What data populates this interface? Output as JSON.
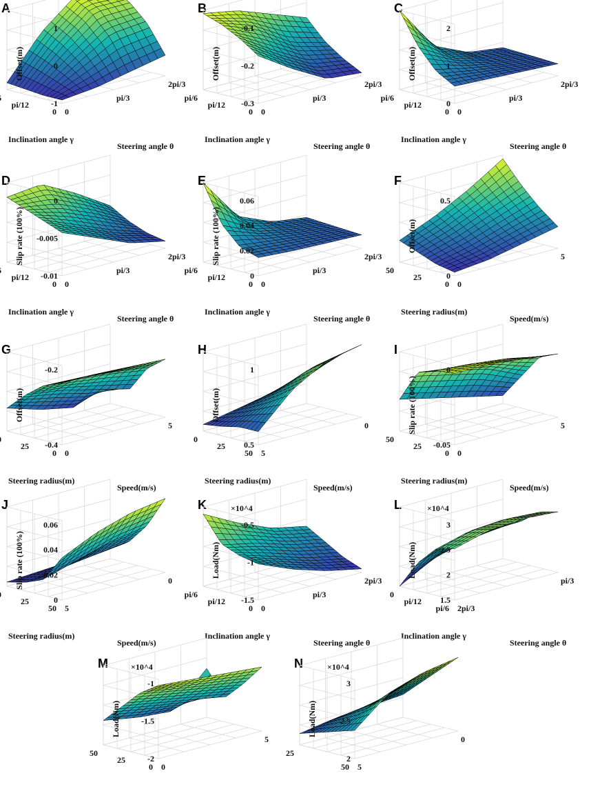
{
  "figure": {
    "colors": {
      "low": "#3e26a8",
      "mid": "#14b5b1",
      "high": "#f9fb15",
      "mesh": "#000000",
      "grid": "#d9d9d9"
    }
  },
  "chart_data": [
    {
      "label": "A",
      "type": "surface",
      "variant": "angle",
      "zlabel": "Offset(m)",
      "zticks": [
        "1",
        "0",
        "-1"
      ],
      "zlim": [
        -1,
        1.3
      ],
      "y_label": "Inclination angle γ",
      "y_ticks": [
        "pi/6",
        "pi/12",
        "0"
      ],
      "x_label": "Steering angle θ",
      "x_ticks": [
        "0",
        "pi/3",
        "2pi/3"
      ],
      "surface": [
        [
          -0.9,
          -0.8,
          -0.6,
          -0.4
        ],
        [
          -0.9,
          -0.3,
          0.3,
          0.4
        ],
        [
          -0.85,
          0.1,
          0.9,
          0.9
        ],
        [
          -0.8,
          0.4,
          1.2,
          1.1
        ]
      ]
    },
    {
      "label": "B",
      "type": "surface",
      "variant": "angle",
      "zlabel": "Offset(m)",
      "zticks": [
        "-0.1",
        "-0.2",
        "-0.3"
      ],
      "zlim": [
        -0.3,
        -0.05
      ],
      "y_label": "Inclination angle γ",
      "y_ticks": [
        "pi/6",
        "pi/12",
        "0"
      ],
      "x_label": "Steering angle θ",
      "x_ticks": [
        "0",
        "pi/3",
        "2pi/3"
      ],
      "surface": [
        [
          -0.15,
          -0.22,
          -0.28,
          -0.29
        ],
        [
          -0.11,
          -0.18,
          -0.24,
          -0.26
        ],
        [
          -0.08,
          -0.12,
          -0.19,
          -0.22
        ],
        [
          -0.06,
          -0.08,
          -0.12,
          -0.16
        ]
      ]
    },
    {
      "label": "C",
      "type": "surface",
      "variant": "angle",
      "zlabel": "Offset(m)",
      "zticks": [
        "2",
        "1",
        "0"
      ],
      "zlim": [
        0,
        2.3
      ],
      "y_label": "Inclination angle γ",
      "y_ticks": [
        "pi/6",
        "pi/12",
        "0"
      ],
      "x_label": "Steering angle θ",
      "x_ticks": [
        "0",
        "pi/3",
        "2pi/3"
      ],
      "surface": [
        [
          0.5,
          0.45,
          0.4,
          0.35
        ],
        [
          0.8,
          0.6,
          0.45,
          0.38
        ],
        [
          1.4,
          0.8,
          0.5,
          0.4
        ],
        [
          2.3,
          1.0,
          0.55,
          0.42
        ]
      ]
    },
    {
      "label": "D",
      "type": "surface",
      "variant": "angle",
      "zlabel": "Slip rate (100%)",
      "zticks": [
        "0",
        "-0.005",
        "-0.01"
      ],
      "zlim": [
        -0.011,
        0
      ],
      "y_label": "Inclination angle γ",
      "y_ticks": [
        "pi/6",
        "pi/12",
        "0"
      ],
      "x_label": "Steering angle θ",
      "x_ticks": [
        "0",
        "pi/3",
        "2pi/3"
      ],
      "surface": [
        [
          -0.005,
          -0.007,
          -0.009,
          -0.01
        ],
        [
          -0.004,
          -0.006,
          -0.008,
          -0.0095
        ],
        [
          -0.003,
          -0.004,
          -0.006,
          -0.0085
        ],
        [
          -0.002,
          -0.0015,
          -0.004,
          -0.007
        ]
      ]
    },
    {
      "label": "E",
      "type": "surface",
      "variant": "angle",
      "zlabel": "Slip rate (100%)",
      "zticks": [
        "0.06",
        "0.04",
        "0.02",
        "0"
      ],
      "zlim": [
        0,
        0.065
      ],
      "y_label": "Inclination angle γ",
      "y_ticks": [
        "pi/6",
        "pi/12",
        "0"
      ],
      "x_label": "Steering angle θ",
      "x_ticks": [
        "0",
        "pi/3",
        "2pi/3"
      ],
      "surface": [
        [
          0.015,
          0.013,
          0.012,
          0.011
        ],
        [
          0.02,
          0.017,
          0.014,
          0.012
        ],
        [
          0.035,
          0.022,
          0.016,
          0.013
        ],
        [
          0.065,
          0.03,
          0.018,
          0.014
        ]
      ]
    },
    {
      "label": "F",
      "type": "surface",
      "variant": "radius",
      "zlabel": "Offset(m)",
      "zticks": [
        "0.5",
        "0"
      ],
      "zlim": [
        -0.4,
        0.7
      ],
      "y_label": "Steering radius(m)",
      "y_ticks": [
        "50",
        "25",
        "0"
      ],
      "x_label": "Speed(m/s)",
      "x_ticks": [
        "0",
        "5"
      ],
      "surface": [
        [
          -0.35,
          -0.3,
          -0.2,
          -0.1
        ],
        [
          -0.3,
          -0.2,
          -0.05,
          0.1
        ],
        [
          -0.2,
          -0.05,
          0.15,
          0.35
        ],
        [
          -0.1,
          0.1,
          0.35,
          0.65
        ]
      ]
    },
    {
      "label": "G",
      "type": "surface",
      "variant": "radius",
      "zlabel": "Offset(m)",
      "zticks": [
        "-0.2",
        "-0.4"
      ],
      "zlim": [
        -0.55,
        -0.1
      ],
      "y_label": "Steering radius(m)",
      "y_ticks": [
        "50",
        "25",
        "0"
      ],
      "x_label": "Speed(m/s)",
      "x_ticks": [
        "0",
        "5"
      ],
      "surface": [
        [
          -0.2,
          -0.2,
          -0.21,
          -0.22
        ],
        [
          -0.24,
          -0.25,
          -0.27,
          -0.3
        ],
        [
          -0.32,
          -0.35,
          -0.4,
          -0.45
        ],
        [
          -0.42,
          -0.48,
          -0.52,
          -0.38
        ]
      ]
    },
    {
      "label": "H",
      "type": "surface",
      "variant": "radius",
      "zlabel": "Offset(m)",
      "zticks": [
        "1",
        "0.5"
      ],
      "zlim": [
        0.45,
        1.05
      ],
      "y_label": "Steering radius(m)",
      "y_ticks": [
        "0",
        "25",
        "50"
      ],
      "x_label": "Speed(m/s)",
      "x_ticks": [
        "5",
        "0"
      ],
      "surface": [
        [
          0.55,
          0.8,
          0.95,
          1.0
        ],
        [
          0.55,
          0.7,
          0.85,
          0.9
        ],
        [
          0.52,
          0.62,
          0.72,
          0.78
        ],
        [
          0.5,
          0.55,
          0.6,
          0.65
        ]
      ]
    },
    {
      "label": "I",
      "type": "surface",
      "variant": "radius",
      "zlabel": "Slip rate (100%)",
      "zticks": [
        "0",
        "-0.05"
      ],
      "zlim": [
        -0.09,
        0.01
      ],
      "y_label": "Steering radius(m)",
      "y_ticks": [
        "50",
        "25",
        "0"
      ],
      "x_label": "Speed(m/s)",
      "x_ticks": [
        "0",
        "5"
      ],
      "surface": [
        [
          0,
          0,
          -0.005,
          -0.01
        ],
        [
          -0.002,
          -0.005,
          -0.01,
          -0.02
        ],
        [
          -0.01,
          -0.02,
          -0.03,
          -0.05
        ],
        [
          -0.05,
          -0.06,
          -0.07,
          -0.08
        ]
      ]
    },
    {
      "label": "J",
      "type": "surface",
      "variant": "radius",
      "zlabel": "Slip rate (100%)",
      "zticks": [
        "0.06",
        "0.04",
        "0.02",
        "0"
      ],
      "zlim": [
        0,
        0.075
      ],
      "y_label": "Steering radius(m)",
      "y_ticks": [
        "0",
        "25",
        "50"
      ],
      "x_label": "Speed(m/s)",
      "x_ticks": [
        "5",
        "0"
      ],
      "surface": [
        [
          0.04,
          0.055,
          0.065,
          0.07
        ],
        [
          0.015,
          0.025,
          0.035,
          0.04
        ],
        [
          0.008,
          0.012,
          0.016,
          0.02
        ],
        [
          0.004,
          0.006,
          0.008,
          0.01
        ]
      ]
    },
    {
      "label": "K",
      "type": "surface",
      "variant": "angle",
      "zlabel": "Load(Nm)",
      "zscale": "×10^4",
      "zticks": [
        "-0.5",
        "-1",
        "-1.5"
      ],
      "zlim": [
        -1.5,
        -0.4
      ],
      "y_label": "Inclination angle γ",
      "y_ticks": [
        "pi/6",
        "pi/12",
        "0"
      ],
      "x_label": "Steering angle θ",
      "x_ticks": [
        "0",
        "pi/3",
        "2pi/3"
      ],
      "surface": [
        [
          -1.0,
          -1.2,
          -1.35,
          -1.45
        ],
        [
          -0.95,
          -1.1,
          -1.25,
          -1.35
        ],
        [
          -0.85,
          -0.95,
          -1.1,
          -1.2
        ],
        [
          -0.5,
          -0.75,
          -0.95,
          -1.05
        ]
      ]
    },
    {
      "label": "L",
      "type": "surface",
      "variant": "angle",
      "zlabel": "Load(Nm)",
      "zscale": "×10^4",
      "zticks": [
        "3",
        "2.5",
        "2",
        "1.5"
      ],
      "zlim": [
        1.4,
        3.1
      ],
      "y_label": "Inclination angle γ",
      "y_ticks": [
        "0",
        "pi/12",
        "pi/6"
      ],
      "x_label": "Steering angle θ",
      "x_ticks": [
        "2pi/3",
        "pi/3"
      ],
      "surface": [
        [
          2.5,
          2.7,
          2.75,
          2.7
        ],
        [
          2.4,
          2.6,
          2.65,
          2.6
        ],
        [
          2.0,
          2.2,
          2.3,
          2.3
        ],
        [
          1.4,
          1.8,
          2.0,
          2.1
        ]
      ]
    },
    {
      "label": "M",
      "type": "surface",
      "variant": "radius",
      "zlabel": "Load(Nm)",
      "zscale": "×10^4",
      "zticks": [
        "-1",
        "-1.5",
        "-2"
      ],
      "zlim": [
        -2.1,
        -0.8
      ],
      "y_label": "Steering radius(m)",
      "y_ticks": [
        "50",
        "25",
        "0"
      ],
      "x_label": "Speed(m/s)",
      "x_ticks": [
        "0",
        "5"
      ],
      "surface": [
        [
          -0.9,
          -0.95,
          -1.0,
          -1.05
        ],
        [
          -1.1,
          -1.2,
          -1.3,
          -1.4
        ],
        [
          -1.4,
          -1.5,
          -1.6,
          -1.7
        ],
        [
          -1.7,
          -1.8,
          -1.85,
          -1.3
        ]
      ]
    },
    {
      "label": "N",
      "type": "surface",
      "variant": "radius",
      "zlabel": "Load(Nm)",
      "zscale": "×10^4",
      "zticks": [
        "3",
        "2.5",
        "2"
      ],
      "zlim": [
        1.9,
        3.3
      ],
      "y_label": "Steering radius(m)",
      "y_ticks": [
        "25",
        "50"
      ],
      "x_label": "Speed(m/s)",
      "x_ticks": [
        "5",
        "0"
      ],
      "surface": [
        [
          2.4,
          2.9,
          3.1,
          3.2
        ],
        [
          2.3,
          2.6,
          2.8,
          2.9
        ],
        [
          2.2,
          2.4,
          2.5,
          2.6
        ],
        [
          2.1,
          2.2,
          2.25,
          2.3
        ]
      ]
    }
  ]
}
